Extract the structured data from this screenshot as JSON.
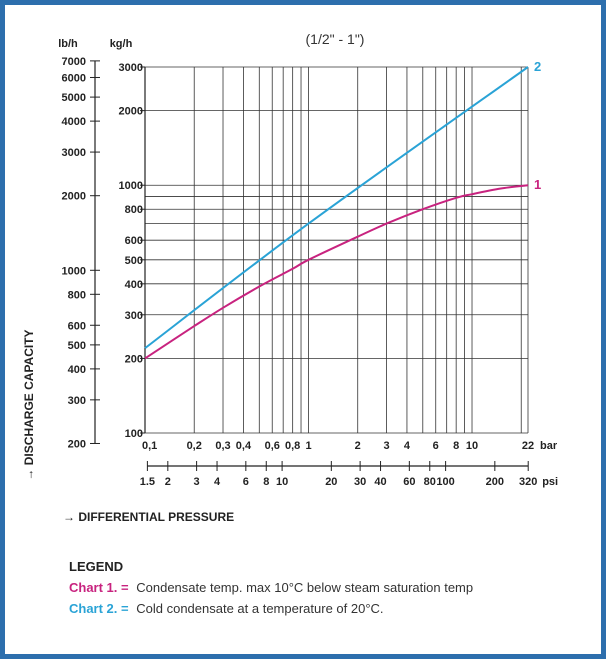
{
  "colors": {
    "border": "#2d6fad",
    "series_1": "#c8237f",
    "series_2": "#2aa3d6",
    "grid": "#333333"
  },
  "chart_data": {
    "type": "line",
    "subtitle": "(1/2\" - 1\")",
    "log_scale": {
      "x": true,
      "y": true
    },
    "grid": true,
    "xlabel": "DIFFERENTIAL PRESSURE",
    "ylabel": "DISCHARGE CAPACITY",
    "x_bar": {
      "unit": "bar",
      "range": [
        0.1,
        22
      ],
      "ticks": [
        "0,1",
        "0,2",
        "0,3",
        "0,4",
        "0,6",
        "0,8",
        "1",
        "2",
        "3",
        "4",
        "6",
        "8",
        "10",
        "22"
      ],
      "tick_values": [
        0.1,
        0.2,
        0.3,
        0.4,
        0.6,
        0.8,
        1,
        2,
        3,
        4,
        6,
        8,
        10,
        22
      ],
      "gridlines": [
        0.1,
        0.2,
        0.3,
        0.4,
        0.5,
        0.6,
        0.7,
        0.8,
        0.9,
        1,
        2,
        3,
        4,
        5,
        6,
        7,
        8,
        9,
        10,
        20,
        22
      ]
    },
    "x_psi": {
      "unit": "psi",
      "ticks": [
        "1.5",
        "2",
        "3",
        "4",
        "6",
        "8",
        "10",
        "20",
        "30",
        "40",
        "60",
        "80",
        "100",
        "200",
        "320"
      ],
      "tick_values": [
        1.5,
        2,
        3,
        4,
        6,
        8,
        10,
        20,
        30,
        40,
        60,
        80,
        100,
        200,
        320
      ]
    },
    "y_kgh": {
      "unit": "kg/h",
      "range": [
        100,
        3000
      ],
      "ticks": [
        "100",
        "200",
        "300",
        "400",
        "500",
        "600",
        "800",
        "1000",
        "2000",
        "3000"
      ],
      "tick_values": [
        100,
        200,
        300,
        400,
        500,
        600,
        800,
        1000,
        2000,
        3000
      ],
      "gridlines": [
        100,
        200,
        300,
        400,
        500,
        600,
        700,
        800,
        900,
        1000,
        2000,
        3000
      ]
    },
    "y_lbh": {
      "unit": "lb/h",
      "ticks": [
        "200",
        "300",
        "400",
        "500",
        "600",
        "800",
        "1000",
        "2000",
        "3000",
        "4000",
        "5000",
        "6000",
        "7000"
      ],
      "tick_values": [
        200,
        300,
        400,
        500,
        600,
        800,
        1000,
        2000,
        3000,
        4000,
        5000,
        6000,
        7000
      ]
    },
    "series": [
      {
        "name": "1",
        "x": [
          0.1,
          0.2,
          0.3,
          0.5,
          0.8,
          1,
          2,
          3,
          5,
          8,
          10,
          15,
          22
        ],
        "y": [
          200,
          270,
          320,
          390,
          460,
          500,
          620,
          700,
          800,
          890,
          920,
          970,
          1000
        ]
      },
      {
        "name": "2",
        "x": [
          0.1,
          1,
          22
        ],
        "y": [
          220,
          700,
          3000
        ]
      }
    ]
  },
  "legend": {
    "title": "LEGEND",
    "items": [
      {
        "key": "Chart 1. =",
        "text": "Condensate temp. max 10°C below steam saturation temp"
      },
      {
        "key": "Chart 2. =",
        "text": "Cold condensate at a temperature of 20°C."
      }
    ]
  }
}
